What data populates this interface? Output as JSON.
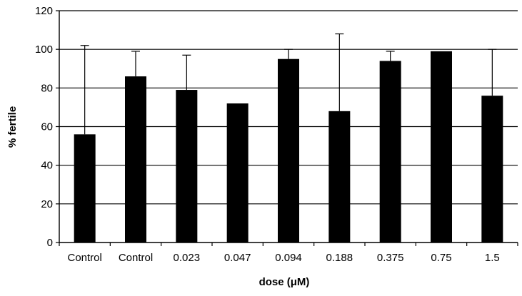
{
  "chart_data": {
    "type": "bar",
    "categories": [
      "Control",
      "Control",
      "0.023",
      "0.047",
      "0.094",
      "0.188",
      "0.375",
      "0.75",
      "1.5"
    ],
    "values": [
      56,
      86,
      79,
      72,
      95,
      68,
      94,
      99,
      76
    ],
    "error_upper": [
      102,
      99,
      97,
      null,
      100,
      108,
      99,
      null,
      100
    ],
    "xlabel": "dose (μM)",
    "ylabel": "% fertile",
    "ylim": [
      0,
      120
    ],
    "yticks": [
      0,
      20,
      40,
      60,
      80,
      100,
      120
    ],
    "grid": true,
    "bar_color": "#000000"
  }
}
